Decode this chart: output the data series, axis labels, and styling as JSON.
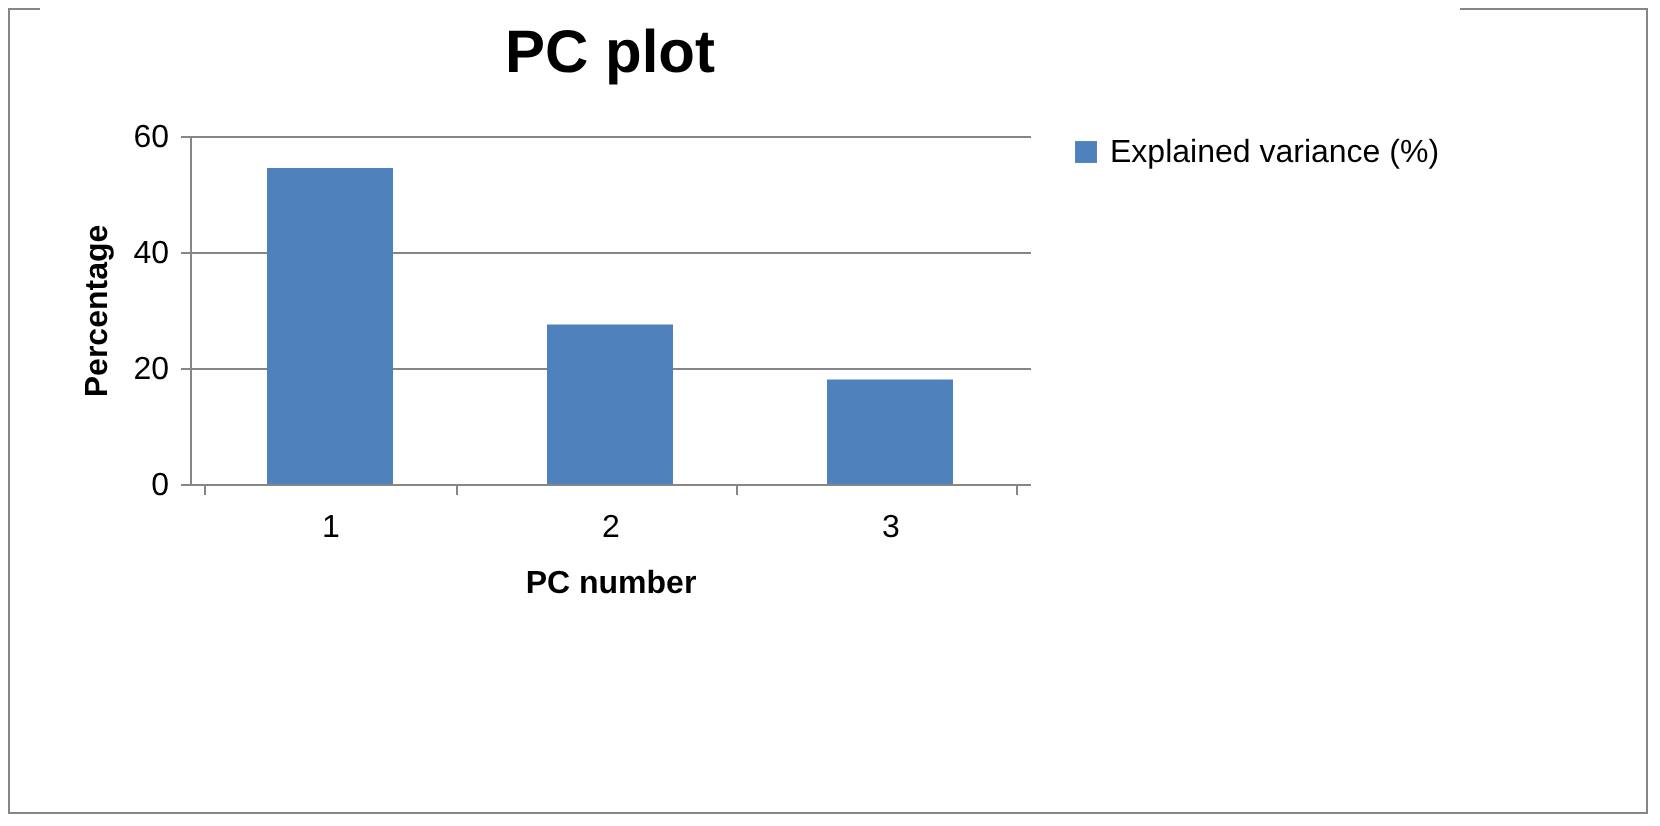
{
  "chart_data": {
    "type": "bar",
    "title": "PC plot",
    "xlabel": "PC number",
    "ylabel": "Percentage",
    "categories": [
      "1",
      "2",
      "3"
    ],
    "series": [
      {
        "name": "Explained variance (%)",
        "color": "#4f81bd",
        "values": [
          54.5,
          27.5,
          18
        ]
      }
    ],
    "ylim": [
      0,
      60
    ],
    "yticks": [
      0,
      20,
      40,
      60
    ],
    "grid": "y",
    "legend": "right"
  }
}
